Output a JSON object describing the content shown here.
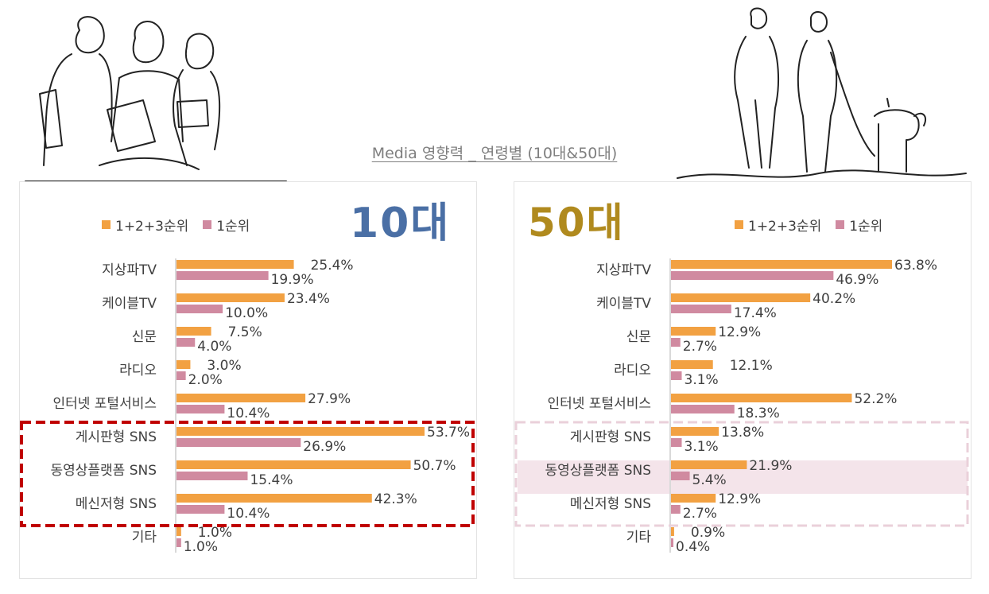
{
  "page": {
    "title": "Media 영향력 _ 연령별 (10대&50대)"
  },
  "legend": {
    "series1": "1+2+3순위",
    "series2": "1순위"
  },
  "colors": {
    "series1": "#f2a142",
    "series2": "#d08aa0",
    "teen_label": "#4a6fa5",
    "fifty_label": "#b08a1e",
    "teen_highlight": "#c00000",
    "fifty_highlight": "#ead0da",
    "fifty_band": "#f4e4ea"
  },
  "chart_data": [
    {
      "type": "bar",
      "orientation": "horizontal",
      "panel_label": "10대",
      "categories": [
        "지상파TV",
        "케이블TV",
        "신문",
        "라디오",
        "인터넷 포털서비스",
        "게시판형 SNS",
        "동영상플랫폼 SNS",
        "메신저형 SNS",
        "기타"
      ],
      "series": [
        {
          "name": "1+2+3순위",
          "values": [
            25.4,
            23.4,
            7.5,
            3.0,
            27.9,
            53.7,
            50.7,
            42.3,
            1.0
          ],
          "labels": [
            "25.4%",
            "23.4%",
            "7.5%",
            "3.0%",
            "27.9%",
            "53.7%",
            "50.7%",
            "42.3%",
            "1.0%"
          ]
        },
        {
          "name": "1순위",
          "values": [
            19.9,
            10.0,
            4.0,
            2.0,
            10.4,
            26.9,
            15.4,
            10.4,
            1.0
          ],
          "labels": [
            "19.9%",
            "10.0%",
            "4.0%",
            "2.0%",
            "10.4%",
            "26.9%",
            "15.4%",
            "10.4%",
            "1.0%"
          ]
        }
      ],
      "highlight_categories": [
        "게시판형 SNS",
        "동영상플랫폼 SNS",
        "메신저형 SNS"
      ],
      "xlim": [
        0,
        53.7
      ],
      "legend_position": "top"
    },
    {
      "type": "bar",
      "orientation": "horizontal",
      "panel_label": "50대",
      "categories": [
        "지상파TV",
        "케이블TV",
        "신문",
        "라디오",
        "인터넷 포털서비스",
        "게시판형 SNS",
        "동영상플랫폼 SNS",
        "메신저형 SNS",
        "기타"
      ],
      "series": [
        {
          "name": "1+2+3순위",
          "values": [
            63.8,
            40.2,
            12.9,
            12.1,
            52.2,
            13.8,
            21.9,
            12.9,
            0.9
          ],
          "labels": [
            "63.8%",
            "40.2%",
            "12.9%",
            "12.1%",
            "52.2%",
            "13.8%",
            "21.9%",
            "12.9%",
            "0.9%"
          ]
        },
        {
          "name": "1순위",
          "values": [
            46.9,
            17.4,
            2.7,
            3.1,
            18.3,
            3.1,
            5.4,
            2.7,
            0.4
          ],
          "labels": [
            "46.9%",
            "17.4%",
            "2.7%",
            "3.1%",
            "18.3%",
            "3.1%",
            "5.4%",
            "2.7%",
            "0.4%"
          ]
        }
      ],
      "highlight_categories": [
        "게시판형 SNS",
        "동영상플랫폼 SNS",
        "메신저형 SNS"
      ],
      "band_category": "동영상플랫폼 SNS",
      "xlim": [
        0,
        63.8
      ],
      "legend_position": "top"
    }
  ]
}
